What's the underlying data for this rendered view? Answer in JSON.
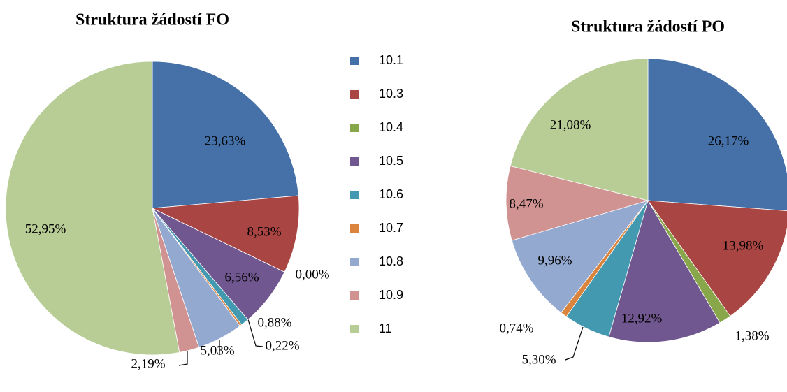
{
  "chart_data": [
    {
      "type": "pie",
      "title": "Struktura žádostí FO",
      "categories": [
        "10.1",
        "10.3",
        "10.4",
        "10.5",
        "10.6",
        "10.7",
        "10.8",
        "10.9",
        "11"
      ],
      "values": [
        23.63,
        8.53,
        0.0,
        6.56,
        0.88,
        0.22,
        5.03,
        2.19,
        52.95
      ],
      "value_labels": [
        "23,63%",
        "8,53%",
        "0,00%",
        "6,56%",
        "0,88%",
        "0,22%",
        "5,03%",
        "2,19%",
        "52,95%"
      ],
      "colors": [
        "#4571a8",
        "#a94542",
        "#88a64a",
        "#71578f",
        "#4299b0",
        "#db843d",
        "#93a9cf",
        "#d19392",
        "#b8cd96"
      ],
      "legend": "right"
    },
    {
      "type": "pie",
      "title": "Struktura žádostí PO",
      "categories": [
        "10.1",
        "10.3",
        "10.4",
        "10.5",
        "10.6",
        "10.7",
        "10.8",
        "10.9",
        "11"
      ],
      "values": [
        26.17,
        13.98,
        1.38,
        12.92,
        5.3,
        0.74,
        9.96,
        8.47,
        21.08
      ],
      "value_labels": [
        "26,17%",
        "13,98%",
        "1,38%",
        "12,92%",
        "5,30%",
        "0,74%",
        "9,96%",
        "8,47%",
        "21,08%"
      ],
      "colors": [
        "#4571a8",
        "#a94542",
        "#88a64a",
        "#71578f",
        "#4299b0",
        "#db843d",
        "#93a9cf",
        "#d19392",
        "#b8cd96"
      ]
    }
  ]
}
